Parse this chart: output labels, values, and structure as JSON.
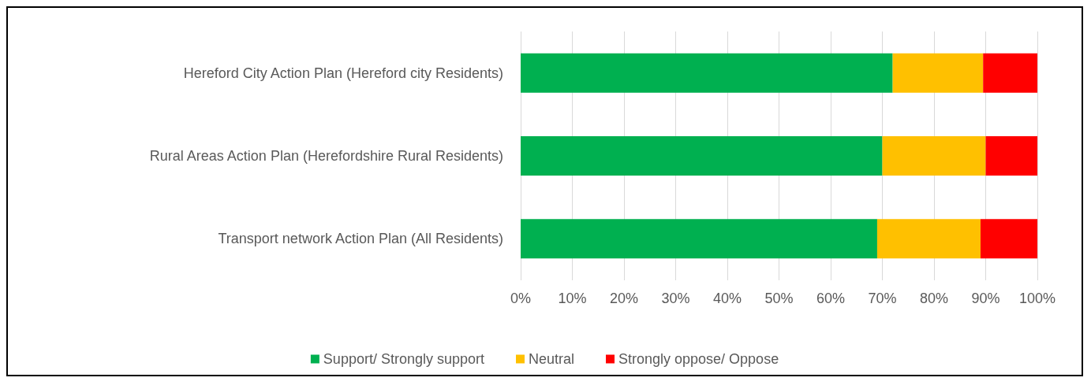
{
  "chart_data": {
    "type": "bar",
    "orientation": "horizontal",
    "stacked": true,
    "categories": [
      "Hereford City Action Plan (Hereford city Residents)",
      "Rural Areas Action Plan (Herefordshire Rural Residents)",
      "Transport network Action Plan (All Residents)"
    ],
    "series": [
      {
        "name": "Support/ Strongly support",
        "color": "#00b050",
        "values": [
          72,
          70,
          69
        ]
      },
      {
        "name": "Neutral",
        "color": "#ffc000",
        "values": [
          17.5,
          20,
          20
        ]
      },
      {
        "name": "Strongly oppose/ Oppose",
        "color": "#ff0000",
        "values": [
          10.5,
          10,
          11
        ]
      }
    ],
    "xlim": [
      0,
      100
    ],
    "xticks": [
      {
        "value": 0,
        "label": "0%"
      },
      {
        "value": 10,
        "label": "10%"
      },
      {
        "value": 20,
        "label": "20%"
      },
      {
        "value": 30,
        "label": "30%"
      },
      {
        "value": 40,
        "label": "40%"
      },
      {
        "value": 50,
        "label": "50%"
      },
      {
        "value": 60,
        "label": "60%"
      },
      {
        "value": 70,
        "label": "70%"
      },
      {
        "value": 80,
        "label": "80%"
      },
      {
        "value": 90,
        "label": "90%"
      },
      {
        "value": 100,
        "label": "100%"
      }
    ],
    "grid": "x",
    "legend": "bottom"
  }
}
